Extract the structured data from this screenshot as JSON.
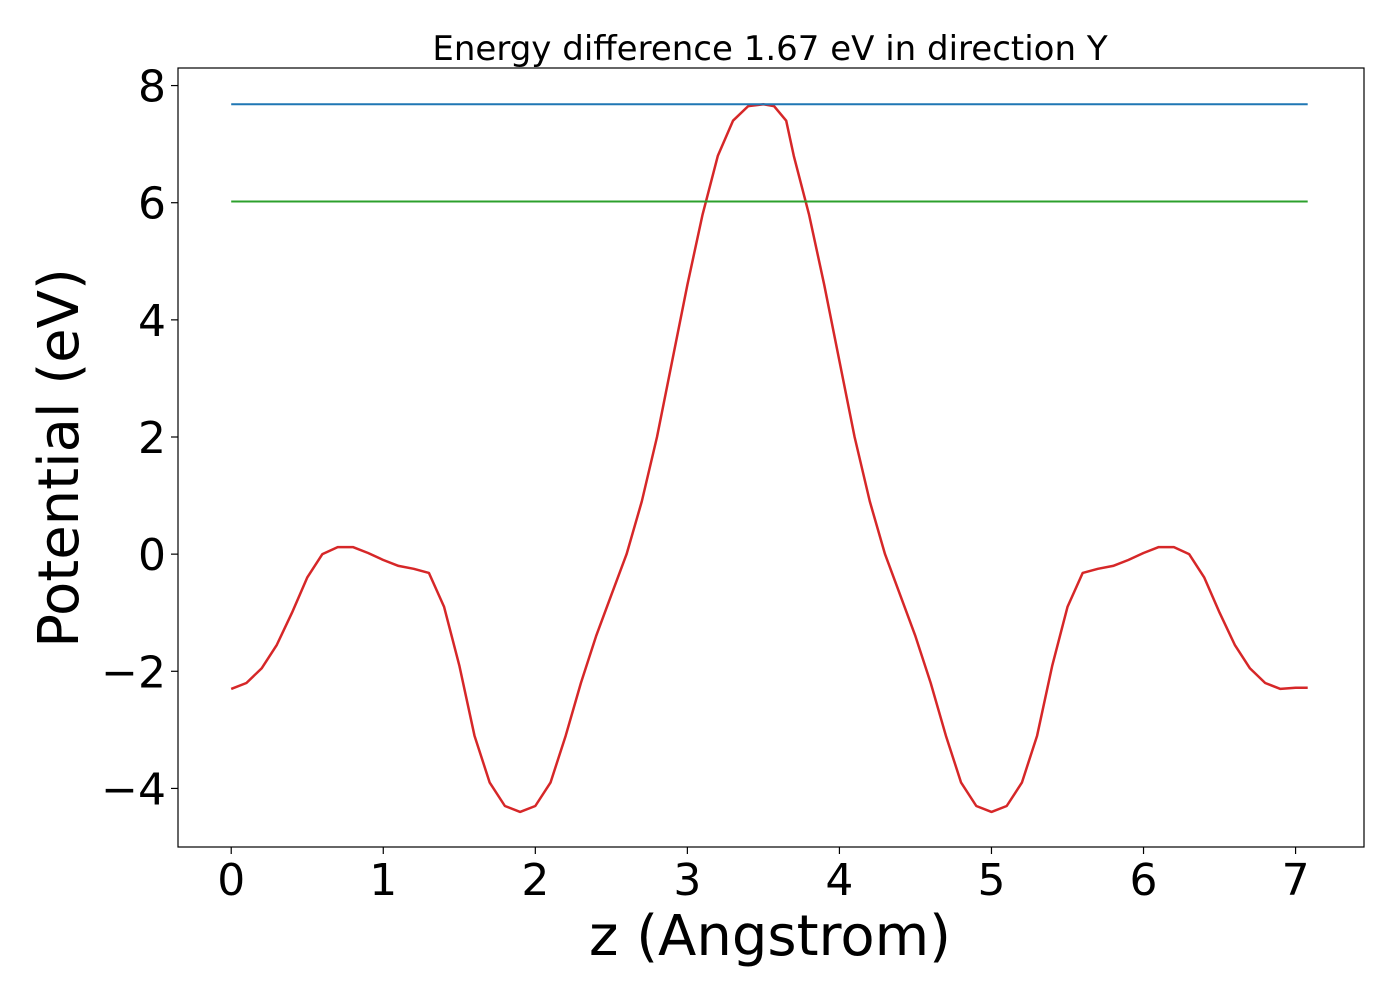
{
  "chart_data": {
    "type": "line",
    "title": "Energy difference 1.67 eV in direction Y",
    "xlabel": "z (Angstrom)",
    "ylabel": "Potential (eV)",
    "xlim": [
      -0.35,
      7.45
    ],
    "ylim": [
      -5.0,
      8.3
    ],
    "xticks": [
      0,
      1,
      2,
      3,
      4,
      5,
      6,
      7
    ],
    "xtick_labels": [
      "0",
      "1",
      "2",
      "3",
      "4",
      "5",
      "6",
      "7"
    ],
    "yticks": [
      -4,
      -2,
      0,
      2,
      4,
      6,
      8
    ],
    "ytick_labels": [
      "−4",
      "−2",
      "0",
      "2",
      "4",
      "6",
      "8"
    ],
    "grid": false,
    "legend": "none",
    "series": [
      {
        "color": "#d62728",
        "x": [
          0.0,
          0.1,
          0.2,
          0.3,
          0.4,
          0.5,
          0.6,
          0.7,
          0.8,
          0.9,
          1.0,
          1.1,
          1.2,
          1.3,
          1.4,
          1.5,
          1.6,
          1.7,
          1.8,
          1.9,
          2.0,
          2.1,
          2.2,
          2.3,
          2.4,
          2.5,
          2.6,
          2.7,
          2.8,
          2.9,
          3.0,
          3.1,
          3.2,
          3.3,
          3.4,
          3.5,
          3.57,
          3.65,
          3.7,
          3.8,
          3.9,
          4.0,
          4.1,
          4.2,
          4.3,
          4.4,
          4.5,
          4.6,
          4.7,
          4.8,
          4.9,
          5.0,
          5.1,
          5.2,
          5.3,
          5.4,
          5.5,
          5.6,
          5.7,
          5.8,
          5.9,
          6.0,
          6.1,
          6.2,
          6.3,
          6.4,
          6.5,
          6.6,
          6.7,
          6.8,
          6.9,
          7.0,
          7.08
        ],
        "y": [
          -2.3,
          -2.2,
          -1.95,
          -1.55,
          -1.0,
          -0.4,
          0.0,
          0.12,
          0.12,
          0.02,
          -0.1,
          -0.2,
          -0.25,
          -0.32,
          -0.9,
          -1.9,
          -3.1,
          -3.9,
          -4.3,
          -4.4,
          -4.3,
          -3.9,
          -3.1,
          -2.2,
          -1.4,
          -0.7,
          0.0,
          0.9,
          2.0,
          3.3,
          4.6,
          5.8,
          6.8,
          7.4,
          7.65,
          7.68,
          7.65,
          7.4,
          6.8,
          5.8,
          4.6,
          3.3,
          2.0,
          0.9,
          0.0,
          -0.7,
          -1.4,
          -2.2,
          -3.1,
          -3.9,
          -4.3,
          -4.4,
          -4.3,
          -3.9,
          -3.1,
          -1.9,
          -0.9,
          -0.32,
          -0.25,
          -0.2,
          -0.1,
          0.02,
          0.12,
          0.12,
          0.0,
          -0.4,
          -1.0,
          -1.55,
          -1.95,
          -2.2,
          -2.3,
          -2.28,
          -2.28
        ]
      },
      {
        "color": "#1f77b4",
        "x": [
          0.0,
          7.08
        ],
        "y": [
          7.68,
          7.68
        ]
      },
      {
        "color": "#2ca02c",
        "x": [
          0.0,
          7.08
        ],
        "y": [
          6.02,
          6.02
        ]
      }
    ]
  }
}
